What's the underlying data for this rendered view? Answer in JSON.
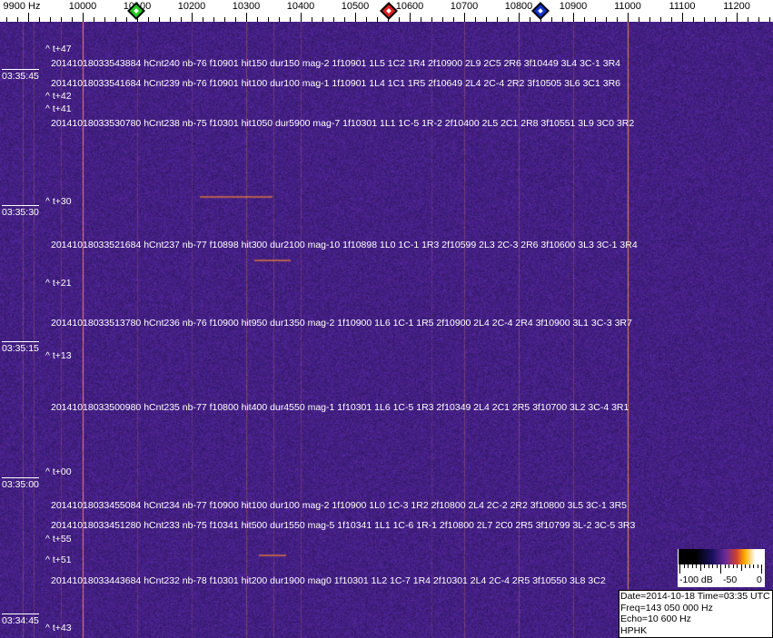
{
  "axis": {
    "unit_label": "9900 Hz",
    "labels": [
      "10000",
      "10100",
      "10200",
      "10300",
      "10400",
      "10500",
      "10600",
      "10700",
      "10800",
      "10900",
      "11000",
      "11100",
      "11200"
    ],
    "label_freqs_hz": [
      10000,
      10100,
      10200,
      10300,
      10400,
      10500,
      10600,
      10700,
      10800,
      10900,
      11000,
      11100,
      11200
    ]
  },
  "markers": [
    {
      "name": "green-marker",
      "freq_hz": 10098,
      "color": "#22cc22"
    },
    {
      "name": "red-marker",
      "freq_hz": 10562,
      "color": "#dd2222"
    },
    {
      "name": "blue-marker",
      "freq_hz": 10840,
      "color": "#1133cc"
    }
  ],
  "colors": {
    "background": "#2a1a6a",
    "carrier": "#ff8a30"
  },
  "time_labels": [
    "03:35:45",
    "03:35:30",
    "03:35:15",
    "03:35:00",
    "03:34:45"
  ],
  "t_labels": [
    "^ t+47",
    "^ t+42",
    "^ t+41",
    "^ t+30",
    "^ t+21",
    "^ t+13",
    "^ t+00",
    "^ t+55",
    "^ t+51",
    "^ t+43"
  ],
  "hits": [
    "20141018033543884 hCnt240 nb-76 f10901 hit150 dur150 mag-2 1f10901 1L5 1C2 1R4 2f10900 2L9 2C5 2R6 3f10449 3L4 3C-1 3R4",
    "20141018033541684 hCnt239 nb-76 f10901 hit100 dur100 mag-1 1f10901 1L4 1C1 1R5 2f10649 2L4 2C-4 2R2 3f10505 3L6 3C1 3R6",
    "20141018033530780 hCnt238 nb-75 f10301 hit1050 dur5900 mag-7 1f10301 1L1 1C-5 1R-2 2f10400 2L5 2C1 2R8 3f10551 3L9 3C0 3R2",
    "20141018033521684 hCnt237 nb-77 f10898 hit300 dur2100 mag-10 1f10898 1L0 1C-1 1R3 2f10599 2L3 2C-3 2R6 3f10600 3L3 3C-1 3R4",
    "20141018033513780 hCnt236 nb-76 f10900 hit950 dur1350 mag-2 1f10900 1L6 1C-1 1R5 2f10900 2L4 2C-4 2R4 3f10900 3L1 3C-3 3R7",
    "20141018033500980 hCnt235 nb-77 f10800 hit400 dur4550 mag-1 1f10301 1L6 1C-5 1R3 2f10349 2L4 2C1 2R5 3f10700 3L2 3C-4 3R1",
    "20141018033455084 hCnt234 nb-77 f10900 hit100 dur100 mag-2 1f10900 1L0 1C-3 1R2 2f10800 2L4 2C-2 2R2 3f10800 3L5 3C-1 3R5",
    "20141018033451280 hCnt233 nb-75 f10341 hit500 dur1550 mag-5 1f10341 1L1 1C-6 1R-1 2f10800 2L7 2C0 2R5 3f10799 3L-2 3C-5 3R3",
    "20141018033443684 hCnt232 nb-78 f10301 hit200 dur1900 mag0 1f10301 1L2 1C-7 1R4 2f10301 2L4 2C-4 2R5 3f10550 3L8 3C2"
  ],
  "colorbar": {
    "labels": [
      "-100 dB",
      "-50",
      "0"
    ]
  },
  "info": {
    "date_time": "Date=2014-10-18 Time=03:35 UTC",
    "freq": "Freq=143 050 000 Hz",
    "echo": "Echo=10 600 Hz",
    "station": "HPHK"
  }
}
